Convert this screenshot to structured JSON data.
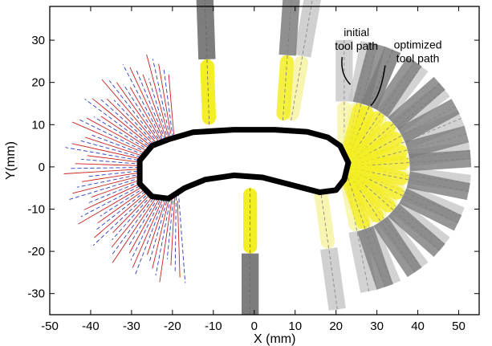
{
  "chart_data": {
    "type": "line",
    "title": "",
    "xlabel": "X (mm)",
    "ylabel": "Y(mm)",
    "xlim": [
      -50,
      55
    ],
    "ylim": [
      -35,
      38
    ],
    "xticks": [
      -50,
      -40,
      -30,
      -20,
      -10,
      0,
      10,
      20,
      30,
      40,
      50
    ],
    "yticks": [
      -30,
      -20,
      -10,
      0,
      10,
      20,
      30
    ],
    "grid": false,
    "legend": "none",
    "annotations": [
      {
        "lines": [
          "initial",
          "tool path"
        ],
        "x": 25,
        "y": 31
      },
      {
        "lines": [
          "optimized",
          "tool path"
        ],
        "x": 40,
        "y": 28
      }
    ],
    "part_outline": {
      "name": "",
      "x": [
        -21,
        -15,
        -5,
        5,
        13,
        18,
        21,
        23,
        22,
        20,
        16,
        12,
        8,
        2,
        -5,
        -12,
        -17,
        -21,
        -25,
        -28,
        -28,
        -25,
        -21
      ],
      "y": [
        6.5,
        8.2,
        8.8,
        8.8,
        8.3,
        7.0,
        5.0,
        1.0,
        -3.0,
        -5.5,
        -6.0,
        -5.0,
        -4.0,
        -2.5,
        -2.0,
        -3.0,
        -5.0,
        -7.5,
        -7.0,
        -4.0,
        1.5,
        5.0,
        6.5
      ]
    },
    "initial_tool_path": {
      "name": "",
      "tool_angles_deg": [
        120,
        105,
        90,
        70,
        50,
        30,
        10,
        -10,
        -30,
        -50,
        -70,
        -90,
        -105
      ],
      "holder_length": 15
    },
    "optimized_tool_path": {
      "name": "",
      "tool_angles_deg": [
        100,
        90,
        75,
        55,
        38,
        20,
        5,
        -15,
        -35,
        -55,
        -75,
        -95
      ],
      "holder_length": 15
    },
    "tool_positions": {
      "left_top": {
        "x": -11,
        "y": 10
      },
      "left_bottom": {
        "x": -1,
        "y": -5
      },
      "mid_top": {
        "x": 9,
        "y": 11
      },
      "mid_bottom": {
        "x": 16,
        "y": -4
      },
      "right_hub": {
        "x": 22,
        "y": 0
      }
    },
    "colors": {
      "part": "#000000",
      "tool_yellow": "#f4ee24",
      "tool_pale_yellow": "#f6f4a2",
      "holder_gray": "#7d7d7d",
      "holder_light_gray": "#c8c8c8",
      "blue_path": "#2a3bbf",
      "red_path": "#cc1f1f"
    }
  }
}
